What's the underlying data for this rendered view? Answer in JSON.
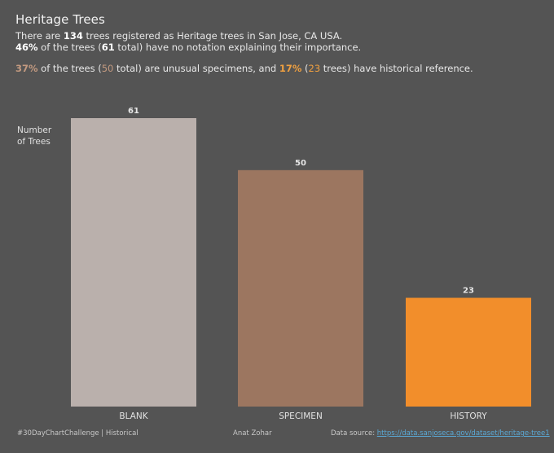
{
  "header": {
    "title": "Heritage Trees",
    "line1_pre": "There are ",
    "line1_count": "134",
    "line1_post": " trees registered as Heritage trees in San Jose, CA USA.",
    "line2_pct": "46%",
    "line2_mid1": " of the trees (",
    "line2_num": "61",
    "line2_post": " total) have no notation explaining their importance.",
    "line3_pct1": "37%",
    "line3_mid1": " of the trees (",
    "line3_num1": "50",
    "line3_mid2": " total) are unusual specimens, and ",
    "line3_pct2": "17%",
    "line3_mid3": " (",
    "line3_num2": "23",
    "line3_post": " trees) have historical reference."
  },
  "colors": {
    "background": "#545454",
    "blank": "#bab0ac",
    "specimen": "#9c7660",
    "history": "#f28e2b",
    "label": "#e6e6e6"
  },
  "chart_data": {
    "type": "bar",
    "categories": [
      "BLANK",
      "SPECIMEN",
      "HISTORY"
    ],
    "values": [
      61,
      50,
      23
    ],
    "ylabel": "Number\nof Trees",
    "ylim": [
      0,
      61
    ],
    "grid": false,
    "data_labels": [
      "61",
      "50",
      "23"
    ]
  },
  "footer": {
    "left": "#30DayChartChallenge  |  Historical",
    "middle": "Anat Zohar",
    "right_label": "Data source:  ",
    "right_link": "https://data.sanjoseca.gov/dataset/heritage-tree1"
  }
}
